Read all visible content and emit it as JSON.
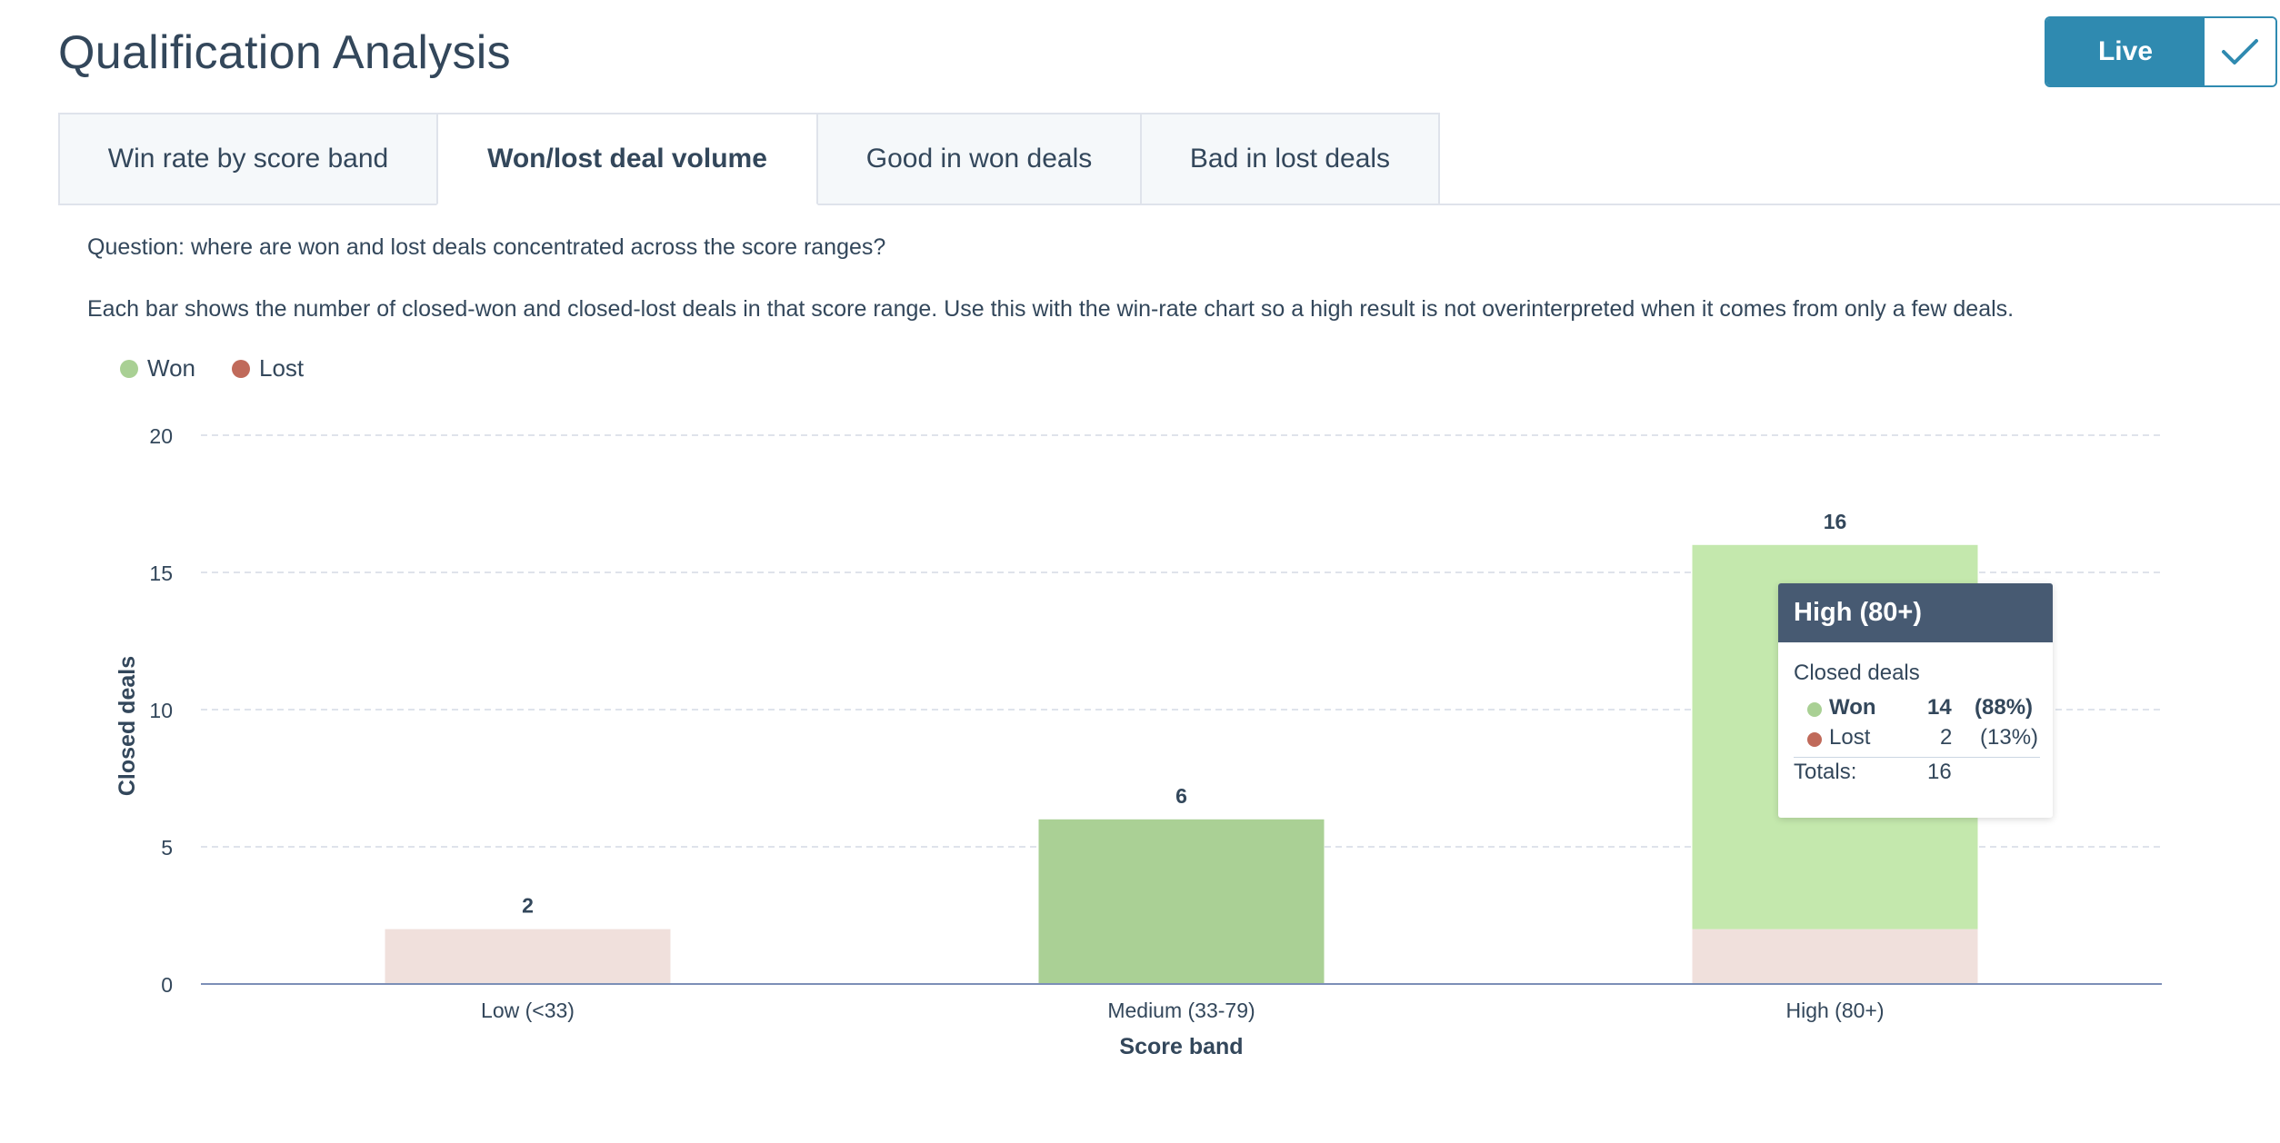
{
  "header": {
    "title": "Qualification Analysis",
    "live_label": "Live"
  },
  "tabs": [
    {
      "label": "Win rate by score band",
      "active": false
    },
    {
      "label": "Won/lost deal volume",
      "active": true
    },
    {
      "label": "Good in won deals",
      "active": false
    },
    {
      "label": "Bad in lost deals",
      "active": false
    }
  ],
  "description": {
    "question": "Question: where are won and lost deals concentrated across the score ranges?",
    "body": "Each bar shows the number of closed-won and closed-lost deals in that score range. Use this with the win-rate chart so a high result is not overinterpreted when it comes from only a few deals."
  },
  "legend": [
    {
      "label": "Won",
      "color": "#a9d094"
    },
    {
      "label": "Lost",
      "color": "#c06a5a"
    }
  ],
  "chart_data": {
    "type": "bar",
    "stacked": true,
    "categories": [
      "Low (<33)",
      "Medium (33-79)",
      "High (80+)"
    ],
    "series": [
      {
        "name": "Lost",
        "values": [
          2,
          0,
          2
        ],
        "color": "#f0e0dc"
      },
      {
        "name": "Won",
        "values": [
          0,
          6,
          14
        ],
        "color": "#aad095",
        "highlight_color": "#c4e8ad"
      }
    ],
    "totals": [
      2,
      6,
      16
    ],
    "xlabel": "Score band",
    "ylabel": "Closed deals",
    "ylim": [
      0,
      20
    ],
    "yticks": [
      0,
      5,
      10,
      15,
      20
    ],
    "grid": true,
    "legend_position": "top-left",
    "highlighted_category": "High (80+)"
  },
  "tooltip": {
    "title": "High (80+)",
    "subtitle": "Closed deals",
    "rows": [
      {
        "label": "Won",
        "value": "14",
        "pct": "(88%)",
        "color": "#a9d094"
      },
      {
        "label": "Lost",
        "value": "2",
        "pct": "(13%)",
        "color": "#c06a5a"
      }
    ],
    "totals_label": "Totals:",
    "totals_value": "16"
  }
}
